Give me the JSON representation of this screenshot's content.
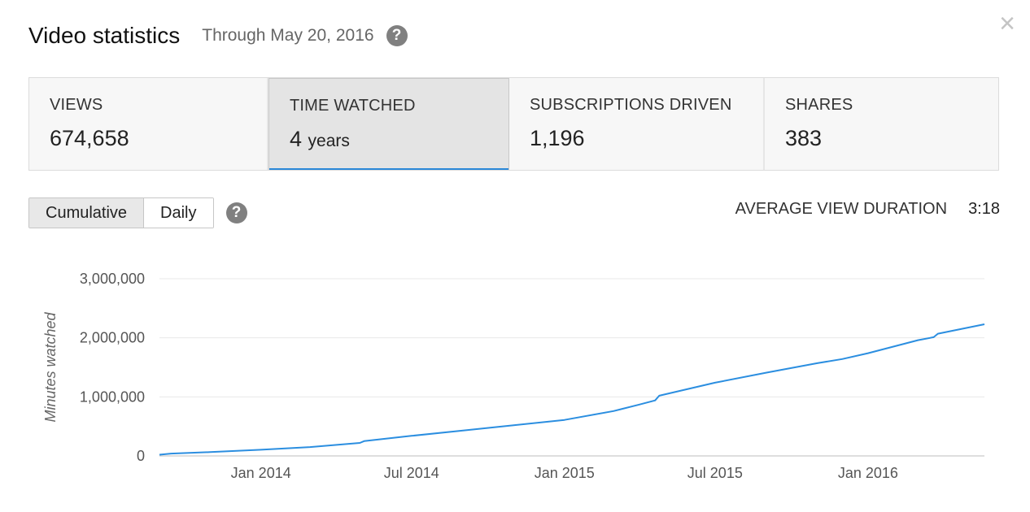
{
  "header": {
    "title": "Video statistics",
    "subtitle": "Through May 20, 2016",
    "help_icon": "question-mark",
    "close_icon": "×"
  },
  "metrics": [
    {
      "label": "VIEWS",
      "value": "674,658",
      "unit": "",
      "selected": false
    },
    {
      "label": "TIME WATCHED",
      "value": "4",
      "unit": "years",
      "selected": true
    },
    {
      "label": "SUBSCRIPTIONS DRIVEN",
      "value": "1,196",
      "unit": "",
      "selected": false
    },
    {
      "label": "SHARES",
      "value": "383",
      "unit": "",
      "selected": false
    }
  ],
  "toggle": {
    "options": [
      "Cumulative",
      "Daily"
    ],
    "selected": "Cumulative"
  },
  "avg_view_duration": {
    "label": "AVERAGE VIEW DURATION",
    "value": "3:18"
  },
  "colors": {
    "line": "#2b8ee0",
    "selected_underline": "#2b88d8"
  },
  "chart_data": {
    "type": "line",
    "title": "",
    "ylabel": "Minutes watched",
    "xlabel": "",
    "ylim": [
      0,
      3000000
    ],
    "yticks": [
      0,
      1000000,
      2000000,
      3000000
    ],
    "ytick_labels": [
      "0",
      "1,000,000",
      "2,000,000",
      "3,000,000"
    ],
    "xticks": [
      "2014-01-01",
      "2014-07-01",
      "2015-01-01",
      "2015-07-01",
      "2016-01-01"
    ],
    "xtick_labels": [
      "Jan 2014",
      "Jul 2014",
      "Jan 2015",
      "Jul 2015",
      "Jan 2016"
    ],
    "xlim": [
      "2013-09-01",
      "2016-05-20"
    ],
    "grid": true,
    "series": [
      {
        "x": [
          "2013-09-01",
          "2013-09-15",
          "2013-11-01",
          "2014-01-01",
          "2014-03-01",
          "2014-04-30",
          "2014-05-05",
          "2014-07-01",
          "2014-09-01",
          "2014-11-01",
          "2015-01-01",
          "2015-03-01",
          "2015-04-01",
          "2015-04-20",
          "2015-04-25",
          "2015-07-01",
          "2015-09-01",
          "2015-11-01",
          "2015-12-01",
          "2016-01-01",
          "2016-03-01",
          "2016-03-20",
          "2016-03-25",
          "2016-05-20"
        ],
        "y": [
          20000,
          40000,
          65000,
          105000,
          150000,
          220000,
          250000,
          340000,
          430000,
          520000,
          610000,
          760000,
          870000,
          940000,
          1020000,
          1240000,
          1410000,
          1570000,
          1640000,
          1740000,
          1960000,
          2010000,
          2070000,
          2230000
        ]
      }
    ]
  }
}
